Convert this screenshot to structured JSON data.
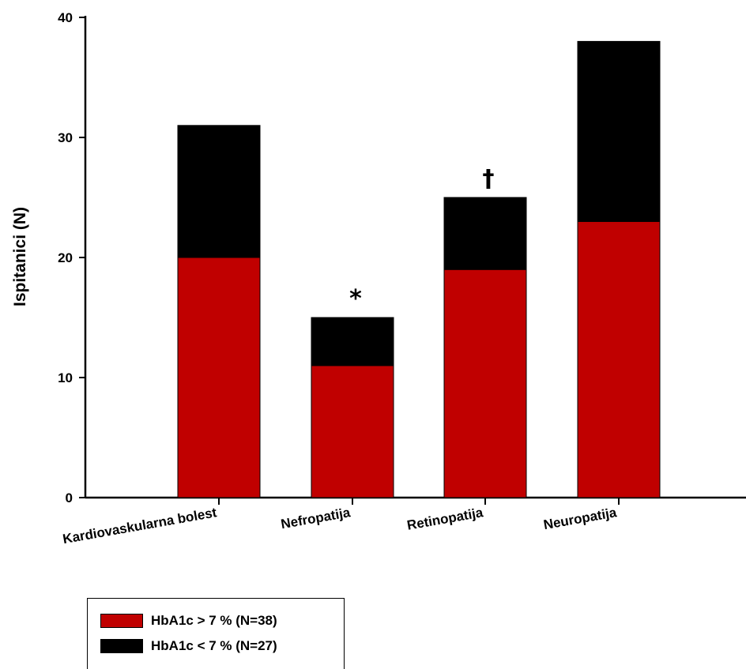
{
  "chart_data": {
    "type": "bar",
    "stacked": true,
    "categories": [
      "Kardiovaskularna bolest",
      "Nefropatija",
      "Retinopatija",
      "Neuropatija"
    ],
    "series": [
      {
        "name": "HbA1c > 7 % (N=38)",
        "values": [
          20,
          11,
          19,
          23
        ],
        "color": "#c00000"
      },
      {
        "name": "HbA1c < 7 % (N=27)",
        "values": [
          11,
          4,
          6,
          15
        ],
        "color": "#000000"
      }
    ],
    "markers": [
      "",
      "*",
      "†",
      ""
    ],
    "ylabel": "Ispitanici (N)",
    "xlabel": "",
    "ylim": [
      0,
      40
    ],
    "yticks": [
      "0",
      "10",
      "20",
      "30",
      "40"
    ],
    "grid": false,
    "legend_position": "bottom-left"
  },
  "legend": {
    "items": [
      {
        "label": "HbA1c > 7 % (N=38)",
        "color": "#c00000"
      },
      {
        "label": "HbA1c < 7 % (N=27)",
        "color": "#000000"
      }
    ]
  }
}
